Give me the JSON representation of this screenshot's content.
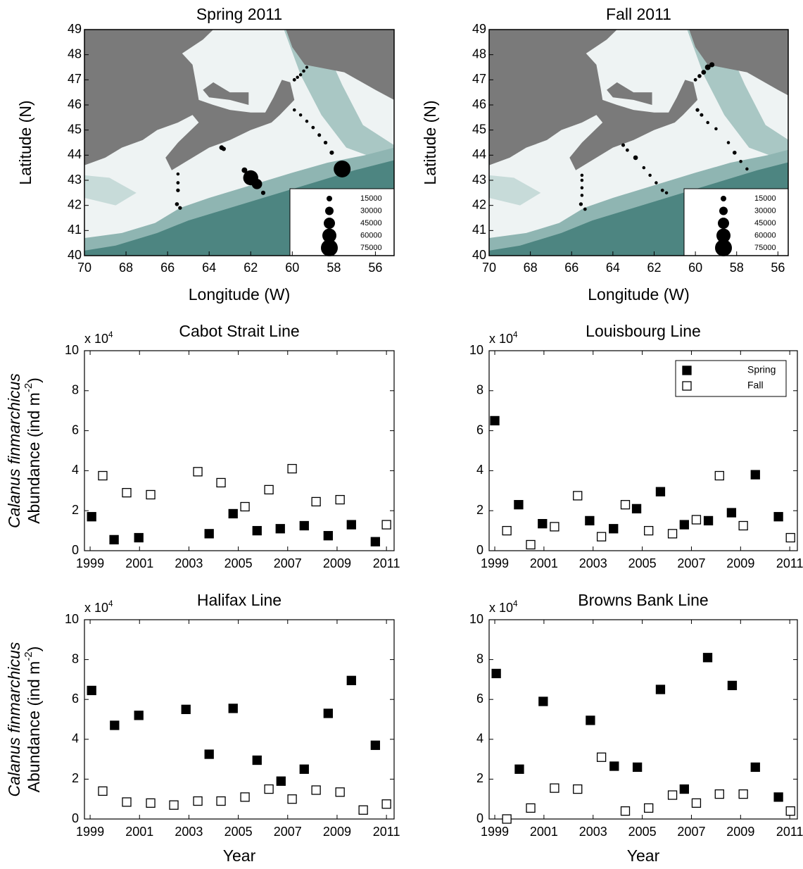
{
  "chart_data": [
    {
      "type": "bubble-map",
      "title": "Spring 2011",
      "xlabel": "Longitude (W)",
      "ylabel": "Latitude (N)",
      "xlim": [
        70,
        55.1
      ],
      "ylim": [
        40,
        49
      ],
      "xticks": [
        70,
        68,
        66,
        64,
        62,
        60,
        58,
        56
      ],
      "yticks": [
        40,
        41,
        42,
        43,
        44,
        45,
        46,
        47,
        48,
        49
      ],
      "x": [
        59.9,
        59.75,
        59.6,
        59.45,
        59.3,
        59.9,
        59.6,
        59.3,
        59.0,
        58.7,
        58.4,
        58.1,
        57.6,
        63.4,
        63.3,
        62.3,
        62.0,
        61.7,
        61.4,
        65.5,
        65.5,
        65.5,
        65.55,
        65.4
      ],
      "y": [
        47.0,
        47.1,
        47.2,
        47.35,
        47.5,
        45.8,
        45.6,
        45.35,
        45.1,
        44.8,
        44.5,
        44.1,
        43.45,
        44.3,
        44.25,
        43.4,
        43.1,
        42.85,
        42.5,
        43.25,
        42.9,
        42.6,
        42.05,
        41.9
      ],
      "sizes": [
        3000,
        2000,
        2000,
        2000,
        1000,
        2000,
        2000,
        2000,
        3000,
        4000,
        5000,
        8000,
        75000,
        10000,
        8000,
        15000,
        65000,
        40000,
        8000,
        2000,
        3000,
        5000,
        6000,
        5000
      ],
      "color": "#000000",
      "size_legend": [
        15000,
        30000,
        45000,
        60000,
        75000
      ]
    },
    {
      "type": "bubble-map",
      "title": "Fall 2011",
      "xlabel": "Longitude (W)",
      "ylabel": "Latitude (N)",
      "xlim": [
        70,
        55.5
      ],
      "ylim": [
        40,
        49
      ],
      "xticks": [
        70,
        68,
        66,
        64,
        62,
        60,
        58,
        56
      ],
      "yticks": [
        40,
        41,
        42,
        43,
        44,
        45,
        46,
        47,
        48,
        49
      ],
      "x": [
        60.0,
        59.8,
        59.6,
        59.4,
        59.2,
        59.9,
        59.7,
        59.4,
        59.0,
        58.4,
        58.1,
        57.8,
        57.5,
        63.5,
        63.3,
        62.9,
        62.5,
        62.2,
        61.9,
        61.6,
        61.4,
        65.5,
        65.5,
        65.5,
        65.5,
        65.55,
        65.35
      ],
      "y": [
        47.0,
        47.15,
        47.3,
        47.5,
        47.6,
        45.8,
        45.6,
        45.3,
        45.05,
        44.5,
        44.1,
        43.75,
        43.45,
        44.4,
        44.2,
        43.9,
        43.5,
        43.2,
        42.9,
        42.6,
        42.5,
        43.2,
        43.0,
        42.7,
        42.4,
        42.05,
        41.85
      ],
      "sizes": [
        3000,
        6000,
        10000,
        15000,
        12000,
        5000,
        4000,
        2000,
        2000,
        2000,
        6000,
        2000,
        2000,
        4000,
        3000,
        10000,
        2000,
        2000,
        2000,
        3000,
        2000,
        2000,
        2000,
        2000,
        2000,
        5000,
        3000
      ],
      "color": "#000000",
      "size_legend": [
        15000,
        30000,
        45000,
        60000,
        75000
      ]
    },
    {
      "type": "scatter",
      "title": "Cabot Strait Line",
      "multiplier": [
        "x 10",
        "4"
      ],
      "ylabel": [
        "Calanus finmarchicus",
        "Abundance (ind m",
        "-2",
        ")"
      ],
      "xlim": [
        1998.77,
        2011.31
      ],
      "ylim": [
        0,
        10
      ],
      "xticks": [
        1999,
        2001,
        2003,
        2005,
        2007,
        2009,
        2011
      ],
      "yticks": [
        0,
        2,
        4,
        6,
        8,
        10
      ],
      "series": [
        {
          "marker": "filled",
          "color": "#000000",
          "x": [
            1999.06,
            1999.97,
            2000.97,
            2003.82,
            2004.79,
            2005.76,
            2006.7,
            2007.67,
            2008.64,
            2009.58,
            2010.55
          ],
          "values": [
            1.7,
            0.55,
            0.65,
            0.85,
            1.85,
            1.0,
            1.1,
            1.25,
            0.75,
            1.3,
            0.45
          ]
        },
        {
          "marker": "open",
          "color": "#000000",
          "x": [
            1999.51,
            2000.48,
            2001.45,
            2003.36,
            2004.3,
            2005.27,
            2006.24,
            2007.18,
            2008.15,
            2009.12,
            2011.0
          ],
          "values": [
            3.75,
            2.9,
            2.8,
            3.95,
            3.4,
            2.2,
            3.05,
            4.1,
            2.45,
            2.55,
            1.3
          ]
        }
      ]
    },
    {
      "type": "scatter",
      "title": "Louisbourg Line",
      "multiplier": [
        "x 10",
        "4"
      ],
      "xlim": [
        1998.77,
        2011.31
      ],
      "ylim": [
        0,
        10
      ],
      "xticks": [
        1999,
        2001,
        2003,
        2005,
        2007,
        2009,
        2011
      ],
      "yticks": [
        0,
        2,
        4,
        6,
        8,
        10
      ],
      "legend": "upper right",
      "series": [
        {
          "name": "Spring",
          "marker": "filled",
          "color": "#000000",
          "x": [
            1999.0,
            1999.97,
            2000.94,
            2002.86,
            2003.83,
            2004.77,
            2005.74,
            2006.71,
            2007.69,
            2008.63,
            2009.6,
            2010.54
          ],
          "values": [
            6.5,
            2.3,
            1.35,
            1.5,
            1.1,
            2.1,
            2.95,
            1.3,
            1.5,
            1.9,
            3.8,
            1.7
          ]
        },
        {
          "name": "Fall",
          "marker": "open",
          "color": "#000000",
          "x": [
            1999.49,
            2000.46,
            2001.43,
            2002.37,
            2003.34,
            2004.31,
            2005.26,
            2006.23,
            2007.2,
            2008.14,
            2009.11,
            2011.03
          ],
          "values": [
            1.0,
            0.3,
            1.2,
            2.75,
            0.7,
            2.3,
            1.0,
            0.85,
            1.55,
            3.75,
            1.25,
            0.65
          ]
        }
      ]
    },
    {
      "type": "scatter",
      "title": "Halifax Line",
      "multiplier": [
        "x 10",
        "4"
      ],
      "xlabel": "Year",
      "ylabel": [
        "Calanus finmarchicus",
        "Abundance (ind m",
        "-2",
        ")"
      ],
      "xlim": [
        1998.77,
        2011.31
      ],
      "ylim": [
        0,
        10
      ],
      "xticks": [
        1999,
        2001,
        2003,
        2005,
        2007,
        2009,
        2011
      ],
      "yticks": [
        0,
        2,
        4,
        6,
        8,
        10
      ],
      "series": [
        {
          "marker": "filled",
          "color": "#000000",
          "x": [
            1999.06,
            1999.99,
            2000.97,
            2002.88,
            2003.82,
            2004.79,
            2005.76,
            2006.73,
            2007.67,
            2008.64,
            2009.58,
            2010.55
          ],
          "values": [
            6.45,
            4.7,
            5.2,
            5.5,
            3.25,
            5.55,
            2.95,
            1.9,
            2.5,
            5.3,
            6.95,
            3.7
          ]
        },
        {
          "marker": "open",
          "color": "#000000",
          "x": [
            1999.51,
            2000.48,
            2001.45,
            2002.39,
            2003.36,
            2004.3,
            2005.27,
            2006.24,
            2007.18,
            2008.15,
            2009.12,
            2010.06,
            2011.0
          ],
          "values": [
            1.4,
            0.85,
            0.8,
            0.7,
            0.9,
            0.9,
            1.1,
            1.5,
            1.0,
            1.45,
            1.35,
            0.45,
            0.75
          ]
        }
      ]
    },
    {
      "type": "scatter",
      "title": "Browns Bank Line",
      "multiplier": [
        "x 10",
        "4"
      ],
      "xlabel": "Year",
      "xlim": [
        1998.77,
        2011.31
      ],
      "ylim": [
        0,
        10
      ],
      "xticks": [
        1999,
        2001,
        2003,
        2005,
        2007,
        2009,
        2011
      ],
      "yticks": [
        0,
        2,
        4,
        6,
        8,
        10
      ],
      "series": [
        {
          "marker": "filled",
          "color": "#000000",
          "x": [
            1999.06,
            2000.0,
            2000.97,
            2002.89,
            2003.86,
            2004.8,
            2005.74,
            2006.71,
            2007.66,
            2008.66,
            2009.6,
            2010.54
          ],
          "values": [
            7.3,
            2.5,
            5.9,
            4.95,
            2.65,
            2.6,
            6.5,
            1.5,
            8.1,
            6.7,
            2.6,
            1.1
          ]
        },
        {
          "marker": "open",
          "color": "#000000",
          "x": [
            1999.49,
            2000.46,
            2001.43,
            2002.37,
            2003.34,
            2004.31,
            2005.26,
            2006.23,
            2007.2,
            2008.14,
            2009.11,
            2011.03
          ],
          "values": [
            0.0,
            0.55,
            1.55,
            1.5,
            3.1,
            0.4,
            0.55,
            1.2,
            0.8,
            1.25,
            1.25,
            0.4
          ]
        }
      ]
    }
  ]
}
